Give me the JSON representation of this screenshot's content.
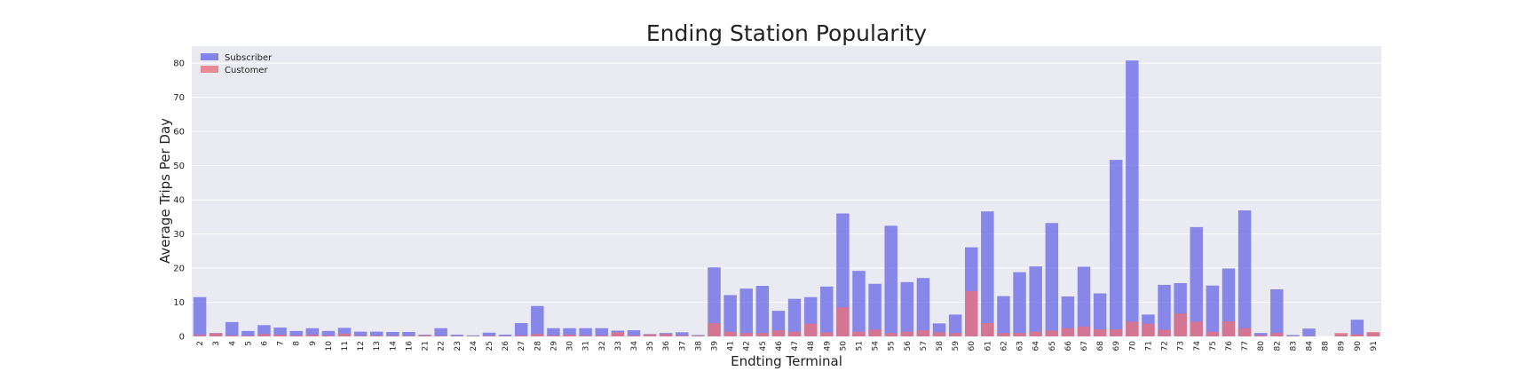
{
  "chart_data": {
    "type": "bar",
    "title": "Ending Station Popularity",
    "xlabel": "Endting Terminal",
    "ylabel": "Average Trips Per Day",
    "ylim": [
      0,
      85
    ],
    "yticks": [
      0,
      10,
      20,
      30,
      40,
      50,
      60,
      70,
      80
    ],
    "grid": true,
    "legend_position": "top-left",
    "categories": [
      "2",
      "3",
      "4",
      "5",
      "6",
      "7",
      "8",
      "9",
      "10",
      "11",
      "12",
      "13",
      "14",
      "16",
      "21",
      "22",
      "23",
      "24",
      "25",
      "26",
      "27",
      "28",
      "29",
      "30",
      "31",
      "32",
      "33",
      "34",
      "35",
      "36",
      "37",
      "38",
      "39",
      "41",
      "42",
      "45",
      "46",
      "47",
      "48",
      "49",
      "50",
      "51",
      "54",
      "55",
      "56",
      "57",
      "58",
      "59",
      "60",
      "61",
      "62",
      "63",
      "64",
      "65",
      "66",
      "67",
      "68",
      "69",
      "70",
      "71",
      "72",
      "73",
      "74",
      "75",
      "76",
      "77",
      "80",
      "82",
      "83",
      "84",
      "88",
      "89",
      "90",
      "91"
    ],
    "series": [
      {
        "name": "Subscriber",
        "color": "#6a6ae8",
        "values": [
          11.5,
          1.0,
          4.2,
          1.6,
          3.3,
          2.6,
          1.6,
          2.4,
          1.6,
          2.5,
          1.4,
          1.4,
          1.3,
          1.3,
          0.5,
          2.4,
          0.5,
          0.3,
          1.1,
          0.5,
          3.9,
          8.9,
          2.4,
          2.4,
          2.4,
          2.4,
          1.7,
          1.8,
          0.7,
          1.0,
          1.2,
          0.4,
          20.2,
          12.1,
          14.0,
          14.8,
          7.5,
          11.0,
          11.5,
          14.6,
          36.0,
          19.2,
          15.4,
          32.4,
          15.9,
          17.1,
          3.8,
          6.4,
          26.1,
          36.6,
          11.8,
          18.8,
          20.5,
          33.2,
          11.7,
          20.4,
          12.6,
          51.7,
          80.8,
          6.4,
          15.1,
          15.6,
          32.0,
          14.9,
          19.9,
          36.9,
          1.0,
          13.8,
          0.4,
          2.3,
          0.0,
          0.6,
          4.9,
          1.0
        ]
      },
      {
        "name": "Customer",
        "color": "#e8707a",
        "values": [
          0.5,
          0.9,
          0.3,
          0.2,
          0.7,
          0.5,
          0.3,
          0.5,
          0.3,
          0.8,
          0.2,
          0.2,
          0.2,
          0.2,
          0.3,
          0.2,
          0.1,
          0.1,
          0.2,
          0.1,
          0.3,
          0.7,
          0.3,
          0.5,
          0.3,
          0.3,
          1.2,
          0.3,
          0.6,
          0.7,
          0.3,
          0.2,
          3.9,
          1.4,
          1.0,
          1.0,
          1.8,
          1.4,
          3.7,
          1.2,
          8.5,
          1.4,
          2.0,
          1.0,
          1.4,
          1.8,
          1.2,
          1.0,
          13.3,
          3.9,
          1.0,
          1.0,
          1.4,
          1.7,
          2.4,
          2.9,
          2.1,
          2.1,
          4.3,
          3.7,
          2.0,
          6.7,
          4.3,
          1.4,
          4.4,
          2.4,
          0.4,
          1.0,
          0.1,
          0.1,
          0.0,
          1.0,
          0.6,
          1.3
        ]
      }
    ]
  }
}
